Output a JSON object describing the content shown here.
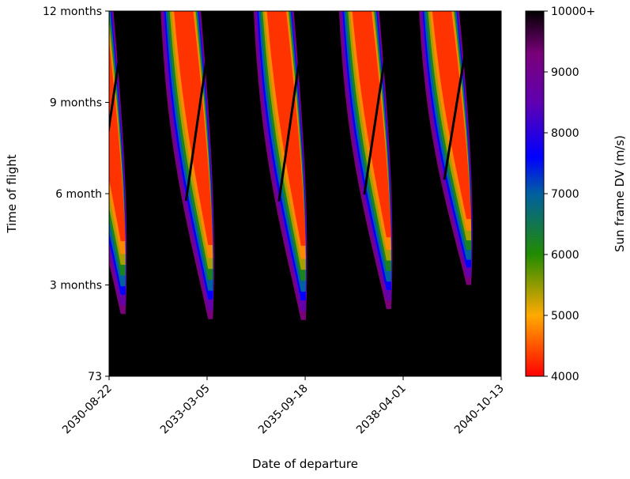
{
  "chart_data": {
    "type": "heatmap",
    "title": "",
    "xlabel": "Date of departure",
    "ylabel": "Time of flight",
    "x_ticks": [
      "2030-08-22",
      "2033-03-05",
      "2035-09-18",
      "2038-04-01",
      "2040-10-13"
    ],
    "x_range": [
      "2030-08-22",
      "2040-10-13"
    ],
    "y_ticks": [
      {
        "value": 73,
        "label": "73"
      },
      {
        "value": 164,
        "label": "3 months"
      },
      {
        "value": 255,
        "label": "6 month"
      },
      {
        "value": 346,
        "label": "9 months"
      },
      {
        "value": 437,
        "label": "12 months"
      }
    ],
    "y_range": [
      73,
      437
    ],
    "background_color": "#000000",
    "colorbar": {
      "label": "Sun frame DV (m/s)",
      "range": [
        4000,
        10000
      ],
      "ticks": [
        {
          "value": 4000,
          "label": "4000"
        },
        {
          "value": 5000,
          "label": "5000"
        },
        {
          "value": 6000,
          "label": "6000"
        },
        {
          "value": 7000,
          "label": "7000"
        },
        {
          "value": 8000,
          "label": "8000"
        },
        {
          "value": 9000,
          "label": "9000"
        },
        {
          "value": 10000,
          "label": "10000+"
        }
      ],
      "colormap": [
        {
          "value": 4000,
          "color": "#ff0000"
        },
        {
          "value": 5000,
          "color": "#ffaa00"
        },
        {
          "value": 6000,
          "color": "#228b00"
        },
        {
          "value": 7000,
          "color": "#0060a0"
        },
        {
          "value": 7600,
          "color": "#0000ff"
        },
        {
          "value": 8500,
          "color": "#6000b0"
        },
        {
          "value": 9300,
          "color": "#7a007a"
        },
        {
          "value": 10000,
          "color": "#000000"
        }
      ]
    },
    "launch_windows": [
      {
        "departure": "2030-12-10",
        "min_dv": 4000,
        "tof_range": [
          135,
          437
        ]
      },
      {
        "departure": "2033-03-15",
        "min_dv": 4000,
        "tof_range": [
          130,
          437
        ]
      },
      {
        "departure": "2035-08-10",
        "min_dv": 4000,
        "tof_range": [
          129,
          437
        ]
      },
      {
        "departure": "2037-10-25",
        "min_dv": 4000,
        "tof_range": [
          140,
          437
        ]
      },
      {
        "departure": "2039-11-20",
        "min_dv": 4100,
        "tof_range": [
          164,
          437
        ]
      }
    ]
  }
}
